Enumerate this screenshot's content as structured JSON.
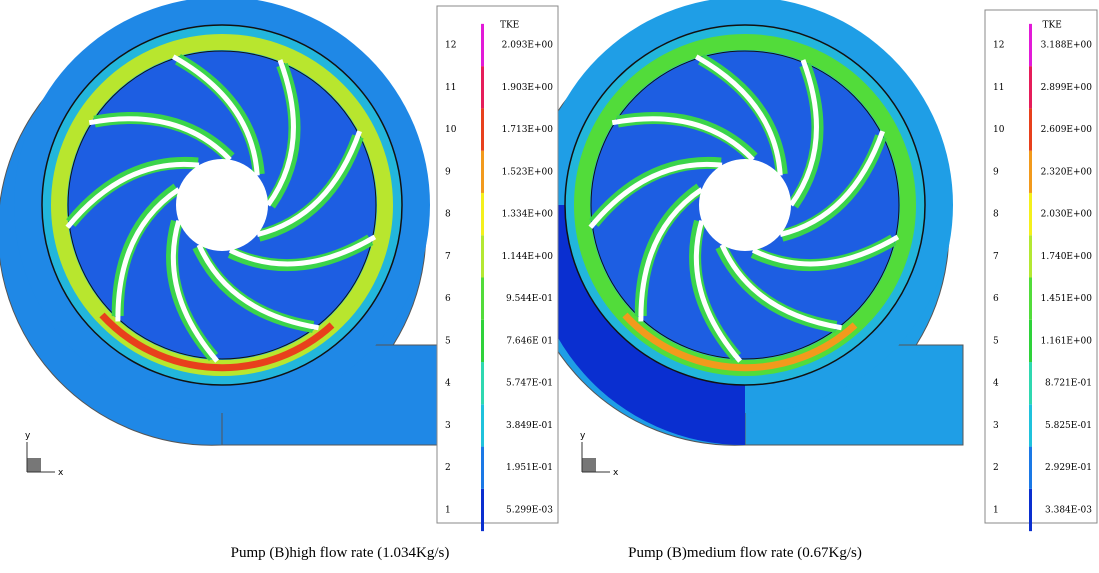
{
  "panels": [
    {
      "legend": {
        "title": "TKE",
        "colors": [
          "#0a2fd0",
          "#1a78e6",
          "#1fc2dc",
          "#2fd8b0",
          "#2ed23a",
          "#52dc3a",
          "#b4e832",
          "#f4f01c",
          "#f29a1c",
          "#e8401c",
          "#e61c5a",
          "#e21ad8"
        ],
        "levels": [
          {
            "level": "1",
            "label": "5.299E-03"
          },
          {
            "level": "2",
            "label": "1.951E-01"
          },
          {
            "level": "3",
            "label": "3.849E-01"
          },
          {
            "level": "4",
            "label": "5.747E-01"
          },
          {
            "level": "5",
            "label": "7.646E 01"
          },
          {
            "level": "6",
            "label": "9.544E-01"
          },
          {
            "level": "7",
            "label": "1.144E+00"
          },
          {
            "level": "8",
            "label": "1.334E+00"
          },
          {
            "level": "9",
            "label": "1.523E+00"
          },
          {
            "level": "10",
            "label": "1.713E+00"
          },
          {
            "level": "11",
            "label": "1.903E+00"
          },
          {
            "level": "12",
            "label": "2.093E+00"
          }
        ]
      },
      "axis_labels": {
        "x": "x",
        "y": "y"
      },
      "caption": "Pump (B)high flow rate (1.034Kg/s)"
    },
    {
      "legend": {
        "title": "TKE",
        "colors": [
          "#0a2fd0",
          "#1a78e6",
          "#1fc2dc",
          "#2fd8b0",
          "#2ed23a",
          "#52dc3a",
          "#b4e832",
          "#f4f01c",
          "#f29a1c",
          "#e8401c",
          "#e61c5a",
          "#e21ad8"
        ],
        "levels": [
          {
            "level": "1",
            "label": "3.384E-03"
          },
          {
            "level": "2",
            "label": "2.929E-01"
          },
          {
            "level": "3",
            "label": "5.825E-01"
          },
          {
            "level": "4",
            "label": "8.721E-01"
          },
          {
            "level": "5",
            "label": "1.161E+00"
          },
          {
            "level": "6",
            "label": "1.451E+00"
          },
          {
            "level": "7",
            "label": "1.740E+00"
          },
          {
            "level": "8",
            "label": "2.030E+00"
          },
          {
            "level": "9",
            "label": "2.320E+00"
          },
          {
            "level": "10",
            "label": "2.609E+00"
          },
          {
            "level": "11",
            "label": "2.899E+00"
          },
          {
            "level": "12",
            "label": "3.188E+00"
          }
        ]
      },
      "axis_labels": {
        "x": "x",
        "y": "y"
      },
      "caption": "Pump (B)medium flow rate (0.67Kg/s)"
    }
  ]
}
